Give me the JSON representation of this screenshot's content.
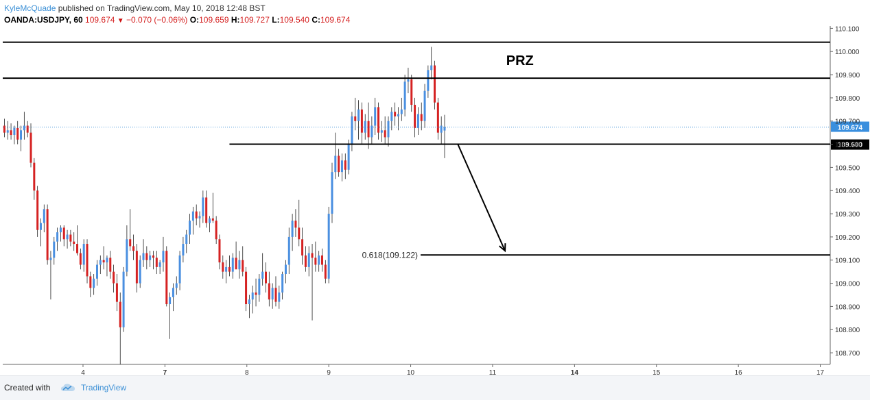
{
  "header": {
    "author": "KyleMcQuade",
    "published_text": " published on TradingView.com, May 10, 2018 12:48 BST",
    "symbol": "OANDA:USDJPY, 60",
    "last": "109.674",
    "change": "−0.070 (−0.06%)",
    "o_label": "O:",
    "o_value": "109.659",
    "h_label": "H:",
    "h_value": "109.727",
    "l_label": "L:",
    "l_value": "109.540",
    "c_label": "C:",
    "c_value": "109.674"
  },
  "footer": {
    "created_with": "Created with",
    "brand": "TradingView"
  },
  "chart_data": {
    "type": "candlestick",
    "symbol": "OANDA:USDJPY",
    "interval": "60",
    "ylim": [
      108.65,
      110.11
    ],
    "y_ticks": [
      "110.100",
      "110.000",
      "109.900",
      "109.800",
      "109.700",
      "109.600",
      "109.500",
      "109.400",
      "109.300",
      "109.200",
      "109.100",
      "109.000",
      "108.900",
      "108.800",
      "108.700"
    ],
    "x_ticks": [
      {
        "label": "4",
        "bold": false,
        "pos": 0.097
      },
      {
        "label": "7",
        "bold": true,
        "pos": 0.196
      },
      {
        "label": "8",
        "bold": false,
        "pos": 0.295
      },
      {
        "label": "9",
        "bold": false,
        "pos": 0.394
      },
      {
        "label": "10",
        "bold": false,
        "pos": 0.493
      },
      {
        "label": "11",
        "bold": false,
        "pos": 0.592
      },
      {
        "label": "14",
        "bold": true,
        "pos": 0.691
      },
      {
        "label": "15",
        "bold": false,
        "pos": 0.79
      },
      {
        "label": "16",
        "bold": false,
        "pos": 0.889
      },
      {
        "label": "17",
        "bold": false,
        "pos": 0.988
      }
    ],
    "colors": {
      "up": "#4a8fe0",
      "down": "#d52222",
      "line": "#000000",
      "last_price": "#3c90d6",
      "last_price_tag": "#3a8fde"
    },
    "last_price_label": "109.674",
    "last_price": 109.674,
    "support_label": "109.600",
    "support_hidden_label": "11:00",
    "annotations": {
      "prz_label": "PRZ",
      "prz_top": 110.04,
      "prz_bottom": 109.885,
      "support": 109.6,
      "support_start": 0.274,
      "fib_label": "0.618(109.122)",
      "fib_level": 109.122,
      "fib_start": 0.505,
      "arrow": {
        "from_t": 0.55,
        "from_price": 109.6,
        "to_t": 0.607,
        "to_price": 109.14
      }
    },
    "candles": [
      {
        "t": 0.002,
        "o": 109.68,
        "h": 109.71,
        "l": 109.63,
        "c": 109.65
      },
      {
        "t": 0.006,
        "o": 109.65,
        "h": 109.7,
        "l": 109.62,
        "c": 109.66
      },
      {
        "t": 0.01,
        "o": 109.66,
        "h": 109.69,
        "l": 109.62,
        "c": 109.64
      },
      {
        "t": 0.014,
        "o": 109.64,
        "h": 109.68,
        "l": 109.6,
        "c": 109.67
      },
      {
        "t": 0.018,
        "o": 109.67,
        "h": 109.7,
        "l": 109.6,
        "c": 109.62
      },
      {
        "t": 0.022,
        "o": 109.62,
        "h": 109.68,
        "l": 109.57,
        "c": 109.66
      },
      {
        "t": 0.026,
        "o": 109.66,
        "h": 109.74,
        "l": 109.62,
        "c": 109.68
      },
      {
        "t": 0.03,
        "o": 109.68,
        "h": 109.7,
        "l": 109.63,
        "c": 109.65
      },
      {
        "t": 0.034,
        "o": 109.65,
        "h": 109.69,
        "l": 109.5,
        "c": 109.52
      },
      {
        "t": 0.038,
        "o": 109.52,
        "h": 109.54,
        "l": 109.36,
        "c": 109.4
      },
      {
        "t": 0.042,
        "o": 109.4,
        "h": 109.42,
        "l": 109.2,
        "c": 109.23
      },
      {
        "t": 0.046,
        "o": 109.23,
        "h": 109.28,
        "l": 109.16,
        "c": 109.26
      },
      {
        "t": 0.05,
        "o": 109.26,
        "h": 109.34,
        "l": 109.22,
        "c": 109.32
      },
      {
        "t": 0.054,
        "o": 109.32,
        "h": 109.34,
        "l": 109.08,
        "c": 109.1
      },
      {
        "t": 0.058,
        "o": 109.1,
        "h": 109.14,
        "l": 108.93,
        "c": 109.11
      },
      {
        "t": 0.062,
        "o": 109.11,
        "h": 109.2,
        "l": 109.08,
        "c": 109.18
      },
      {
        "t": 0.066,
        "o": 109.18,
        "h": 109.24,
        "l": 109.14,
        "c": 109.22
      },
      {
        "t": 0.07,
        "o": 109.22,
        "h": 109.25,
        "l": 109.18,
        "c": 109.24
      },
      {
        "t": 0.074,
        "o": 109.24,
        "h": 109.25,
        "l": 109.16,
        "c": 109.19
      },
      {
        "t": 0.078,
        "o": 109.19,
        "h": 109.23,
        "l": 109.15,
        "c": 109.21
      },
      {
        "t": 0.082,
        "o": 109.21,
        "h": 109.23,
        "l": 109.16,
        "c": 109.18
      },
      {
        "t": 0.086,
        "o": 109.18,
        "h": 109.22,
        "l": 109.14,
        "c": 109.17
      },
      {
        "t": 0.09,
        "o": 109.17,
        "h": 109.25,
        "l": 109.12,
        "c": 109.13
      },
      {
        "t": 0.094,
        "o": 109.13,
        "h": 109.15,
        "l": 109.06,
        "c": 109.08
      },
      {
        "t": 0.098,
        "o": 109.08,
        "h": 109.19,
        "l": 109.05,
        "c": 109.17
      },
      {
        "t": 0.102,
        "o": 109.17,
        "h": 109.19,
        "l": 109.0,
        "c": 109.03
      },
      {
        "t": 0.106,
        "o": 109.03,
        "h": 109.05,
        "l": 108.94,
        "c": 108.98
      },
      {
        "t": 0.11,
        "o": 108.98,
        "h": 109.04,
        "l": 108.95,
        "c": 109.02
      },
      {
        "t": 0.114,
        "o": 109.02,
        "h": 109.1,
        "l": 108.99,
        "c": 109.08
      },
      {
        "t": 0.118,
        "o": 109.08,
        "h": 109.12,
        "l": 109.04,
        "c": 109.1
      },
      {
        "t": 0.122,
        "o": 109.1,
        "h": 109.16,
        "l": 109.06,
        "c": 109.09
      },
      {
        "t": 0.126,
        "o": 109.09,
        "h": 109.12,
        "l": 109.03,
        "c": 109.11
      },
      {
        "t": 0.13,
        "o": 109.11,
        "h": 109.14,
        "l": 109.02,
        "c": 109.05
      },
      {
        "t": 0.134,
        "o": 109.05,
        "h": 109.08,
        "l": 108.96,
        "c": 109.0
      },
      {
        "t": 0.138,
        "o": 109.0,
        "h": 109.04,
        "l": 108.88,
        "c": 108.92
      },
      {
        "t": 0.142,
        "o": 108.92,
        "h": 108.96,
        "l": 108.65,
        "c": 108.81
      },
      {
        "t": 0.146,
        "o": 108.81,
        "h": 109.07,
        "l": 108.79,
        "c": 109.05
      },
      {
        "t": 0.15,
        "o": 109.05,
        "h": 109.25,
        "l": 109.03,
        "c": 109.19
      },
      {
        "t": 0.154,
        "o": 109.19,
        "h": 109.32,
        "l": 109.14,
        "c": 109.16
      },
      {
        "t": 0.158,
        "o": 109.16,
        "h": 109.21,
        "l": 109.1,
        "c": 109.14
      },
      {
        "t": 0.162,
        "o": 109.14,
        "h": 109.17,
        "l": 108.96,
        "c": 109.0
      },
      {
        "t": 0.166,
        "o": 109.0,
        "h": 109.12,
        "l": 108.98,
        "c": 109.1
      },
      {
        "t": 0.17,
        "o": 109.1,
        "h": 109.19,
        "l": 109.07,
        "c": 109.13
      },
      {
        "t": 0.174,
        "o": 109.13,
        "h": 109.16,
        "l": 109.06,
        "c": 109.1
      },
      {
        "t": 0.178,
        "o": 109.1,
        "h": 109.14,
        "l": 109.07,
        "c": 109.12
      },
      {
        "t": 0.182,
        "o": 109.12,
        "h": 109.14,
        "l": 109.06,
        "c": 109.11
      },
      {
        "t": 0.186,
        "o": 109.11,
        "h": 109.14,
        "l": 109.04,
        "c": 109.07
      },
      {
        "t": 0.19,
        "o": 109.07,
        "h": 109.1,
        "l": 109.04,
        "c": 109.09
      },
      {
        "t": 0.194,
        "o": 109.09,
        "h": 109.2,
        "l": 109.05,
        "c": 109.14
      },
      {
        "t": 0.198,
        "o": 109.14,
        "h": 109.16,
        "l": 108.9,
        "c": 108.91
      },
      {
        "t": 0.202,
        "o": 108.91,
        "h": 108.96,
        "l": 108.76,
        "c": 108.94
      },
      {
        "t": 0.206,
        "o": 108.94,
        "h": 109.0,
        "l": 108.88,
        "c": 108.98
      },
      {
        "t": 0.21,
        "o": 108.98,
        "h": 109.03,
        "l": 108.95,
        "c": 109.0
      },
      {
        "t": 0.214,
        "o": 109.0,
        "h": 109.14,
        "l": 108.97,
        "c": 109.12
      },
      {
        "t": 0.218,
        "o": 109.12,
        "h": 109.2,
        "l": 109.09,
        "c": 109.17
      },
      {
        "t": 0.222,
        "o": 109.17,
        "h": 109.23,
        "l": 109.13,
        "c": 109.21
      },
      {
        "t": 0.226,
        "o": 109.21,
        "h": 109.3,
        "l": 109.17,
        "c": 109.27
      },
      {
        "t": 0.23,
        "o": 109.27,
        "h": 109.33,
        "l": 109.21,
        "c": 109.31
      },
      {
        "t": 0.234,
        "o": 109.31,
        "h": 109.34,
        "l": 109.25,
        "c": 109.28
      },
      {
        "t": 0.238,
        "o": 109.28,
        "h": 109.31,
        "l": 109.24,
        "c": 109.29
      },
      {
        "t": 0.242,
        "o": 109.29,
        "h": 109.4,
        "l": 109.26,
        "c": 109.37
      },
      {
        "t": 0.246,
        "o": 109.37,
        "h": 109.4,
        "l": 109.24,
        "c": 109.26
      },
      {
        "t": 0.25,
        "o": 109.26,
        "h": 109.29,
        "l": 109.22,
        "c": 109.28
      },
      {
        "t": 0.254,
        "o": 109.28,
        "h": 109.39,
        "l": 109.26,
        "c": 109.27
      },
      {
        "t": 0.258,
        "o": 109.27,
        "h": 109.29,
        "l": 109.17,
        "c": 109.19
      },
      {
        "t": 0.262,
        "o": 109.19,
        "h": 109.21,
        "l": 109.06,
        "c": 109.09
      },
      {
        "t": 0.266,
        "o": 109.09,
        "h": 109.12,
        "l": 109.02,
        "c": 109.05
      },
      {
        "t": 0.27,
        "o": 109.05,
        "h": 109.1,
        "l": 109.0,
        "c": 109.07
      },
      {
        "t": 0.274,
        "o": 109.07,
        "h": 109.12,
        "l": 109.03,
        "c": 109.05
      },
      {
        "t": 0.278,
        "o": 109.05,
        "h": 109.13,
        "l": 109.02,
        "c": 109.11
      },
      {
        "t": 0.282,
        "o": 109.11,
        "h": 109.18,
        "l": 109.07,
        "c": 109.06
      },
      {
        "t": 0.286,
        "o": 109.06,
        "h": 109.14,
        "l": 109.02,
        "c": 109.1
      },
      {
        "t": 0.29,
        "o": 109.1,
        "h": 109.16,
        "l": 109.03,
        "c": 109.05
      },
      {
        "t": 0.294,
        "o": 109.05,
        "h": 109.07,
        "l": 108.88,
        "c": 108.91
      },
      {
        "t": 0.298,
        "o": 108.91,
        "h": 108.95,
        "l": 108.85,
        "c": 108.93
      },
      {
        "t": 0.302,
        "o": 108.93,
        "h": 108.99,
        "l": 108.87,
        "c": 108.96
      },
      {
        "t": 0.306,
        "o": 108.96,
        "h": 109.02,
        "l": 108.9,
        "c": 108.95
      },
      {
        "t": 0.31,
        "o": 108.95,
        "h": 109.04,
        "l": 108.92,
        "c": 109.02
      },
      {
        "t": 0.314,
        "o": 109.02,
        "h": 109.13,
        "l": 108.99,
        "c": 109.05
      },
      {
        "t": 0.318,
        "o": 109.05,
        "h": 109.09,
        "l": 108.96,
        "c": 109.0
      },
      {
        "t": 0.322,
        "o": 109.0,
        "h": 109.05,
        "l": 108.9,
        "c": 108.93
      },
      {
        "t": 0.326,
        "o": 108.93,
        "h": 109.0,
        "l": 108.89,
        "c": 108.98
      },
      {
        "t": 0.33,
        "o": 108.98,
        "h": 109.03,
        "l": 108.9,
        "c": 108.92
      },
      {
        "t": 0.334,
        "o": 108.92,
        "h": 108.99,
        "l": 108.89,
        "c": 108.96
      },
      {
        "t": 0.338,
        "o": 108.96,
        "h": 109.05,
        "l": 108.93,
        "c": 109.04
      },
      {
        "t": 0.342,
        "o": 109.04,
        "h": 109.1,
        "l": 109.0,
        "c": 109.08
      },
      {
        "t": 0.346,
        "o": 109.08,
        "h": 109.24,
        "l": 109.04,
        "c": 109.2
      },
      {
        "t": 0.35,
        "o": 109.2,
        "h": 109.3,
        "l": 109.14,
        "c": 109.27
      },
      {
        "t": 0.354,
        "o": 109.27,
        "h": 109.32,
        "l": 109.2,
        "c": 109.24
      },
      {
        "t": 0.358,
        "o": 109.24,
        "h": 109.36,
        "l": 109.16,
        "c": 109.19
      },
      {
        "t": 0.362,
        "o": 109.19,
        "h": 109.24,
        "l": 109.08,
        "c": 109.12
      },
      {
        "t": 0.366,
        "o": 109.12,
        "h": 109.16,
        "l": 109.05,
        "c": 109.07
      },
      {
        "t": 0.37,
        "o": 109.07,
        "h": 109.16,
        "l": 109.03,
        "c": 109.13
      },
      {
        "t": 0.374,
        "o": 109.13,
        "h": 109.17,
        "l": 108.84,
        "c": 109.11
      },
      {
        "t": 0.378,
        "o": 109.11,
        "h": 109.18,
        "l": 109.05,
        "c": 109.08
      },
      {
        "t": 0.382,
        "o": 109.08,
        "h": 109.14,
        "l": 109.05,
        "c": 109.12
      },
      {
        "t": 0.386,
        "o": 109.12,
        "h": 109.15,
        "l": 109.05,
        "c": 109.08
      },
      {
        "t": 0.39,
        "o": 109.08,
        "h": 109.1,
        "l": 109.0,
        "c": 109.02
      },
      {
        "t": 0.394,
        "o": 109.02,
        "h": 109.33,
        "l": 109.0,
        "c": 109.3
      },
      {
        "t": 0.398,
        "o": 109.3,
        "h": 109.52,
        "l": 109.26,
        "c": 109.48
      },
      {
        "t": 0.402,
        "o": 109.48,
        "h": 109.65,
        "l": 109.45,
        "c": 109.55
      },
      {
        "t": 0.406,
        "o": 109.55,
        "h": 109.58,
        "l": 109.46,
        "c": 109.48
      },
      {
        "t": 0.41,
        "o": 109.48,
        "h": 109.56,
        "l": 109.44,
        "c": 109.53
      },
      {
        "t": 0.414,
        "o": 109.53,
        "h": 109.56,
        "l": 109.45,
        "c": 109.49
      },
      {
        "t": 0.418,
        "o": 109.49,
        "h": 109.62,
        "l": 109.47,
        "c": 109.6
      },
      {
        "t": 0.422,
        "o": 109.6,
        "h": 109.74,
        "l": 109.57,
        "c": 109.72
      },
      {
        "t": 0.426,
        "o": 109.72,
        "h": 109.8,
        "l": 109.66,
        "c": 109.7
      },
      {
        "t": 0.43,
        "o": 109.7,
        "h": 109.79,
        "l": 109.62,
        "c": 109.75
      },
      {
        "t": 0.434,
        "o": 109.75,
        "h": 109.78,
        "l": 109.6,
        "c": 109.65
      },
      {
        "t": 0.438,
        "o": 109.65,
        "h": 109.73,
        "l": 109.62,
        "c": 109.7
      },
      {
        "t": 0.442,
        "o": 109.7,
        "h": 109.78,
        "l": 109.58,
        "c": 109.63
      },
      {
        "t": 0.446,
        "o": 109.63,
        "h": 109.72,
        "l": 109.6,
        "c": 109.68
      },
      {
        "t": 0.45,
        "o": 109.68,
        "h": 109.8,
        "l": 109.64,
        "c": 109.76
      },
      {
        "t": 0.454,
        "o": 109.76,
        "h": 109.78,
        "l": 109.62,
        "c": 109.65
      },
      {
        "t": 0.458,
        "o": 109.65,
        "h": 109.7,
        "l": 109.61,
        "c": 109.66
      },
      {
        "t": 0.462,
        "o": 109.66,
        "h": 109.72,
        "l": 109.6,
        "c": 109.63
      },
      {
        "t": 0.466,
        "o": 109.63,
        "h": 109.72,
        "l": 109.59,
        "c": 109.7
      },
      {
        "t": 0.47,
        "o": 109.7,
        "h": 109.76,
        "l": 109.66,
        "c": 109.74
      },
      {
        "t": 0.474,
        "o": 109.74,
        "h": 109.78,
        "l": 109.68,
        "c": 109.72
      },
      {
        "t": 0.478,
        "o": 109.72,
        "h": 109.76,
        "l": 109.66,
        "c": 109.73
      },
      {
        "t": 0.482,
        "o": 109.73,
        "h": 109.8,
        "l": 109.7,
        "c": 109.75
      },
      {
        "t": 0.486,
        "o": 109.75,
        "h": 109.9,
        "l": 109.72,
        "c": 109.87
      },
      {
        "t": 0.49,
        "o": 109.87,
        "h": 109.93,
        "l": 109.82,
        "c": 109.88
      },
      {
        "t": 0.494,
        "o": 109.88,
        "h": 109.9,
        "l": 109.74,
        "c": 109.77
      },
      {
        "t": 0.498,
        "o": 109.77,
        "h": 109.8,
        "l": 109.63,
        "c": 109.67
      },
      {
        "t": 0.502,
        "o": 109.67,
        "h": 109.76,
        "l": 109.64,
        "c": 109.73
      },
      {
        "t": 0.506,
        "o": 109.73,
        "h": 109.78,
        "l": 109.66,
        "c": 109.7
      },
      {
        "t": 0.51,
        "o": 109.7,
        "h": 109.86,
        "l": 109.67,
        "c": 109.83
      },
      {
        "t": 0.514,
        "o": 109.83,
        "h": 109.94,
        "l": 109.8,
        "c": 109.92
      },
      {
        "t": 0.518,
        "o": 109.92,
        "h": 110.02,
        "l": 109.88,
        "c": 109.94
      },
      {
        "t": 0.522,
        "o": 109.94,
        "h": 109.96,
        "l": 109.75,
        "c": 109.78
      },
      {
        "t": 0.526,
        "o": 109.78,
        "h": 109.8,
        "l": 109.62,
        "c": 109.65
      },
      {
        "t": 0.53,
        "o": 109.65,
        "h": 109.72,
        "l": 109.6,
        "c": 109.68
      },
      {
        "t": 0.534,
        "o": 109.659,
        "h": 109.727,
        "l": 109.54,
        "c": 109.674
      }
    ]
  }
}
